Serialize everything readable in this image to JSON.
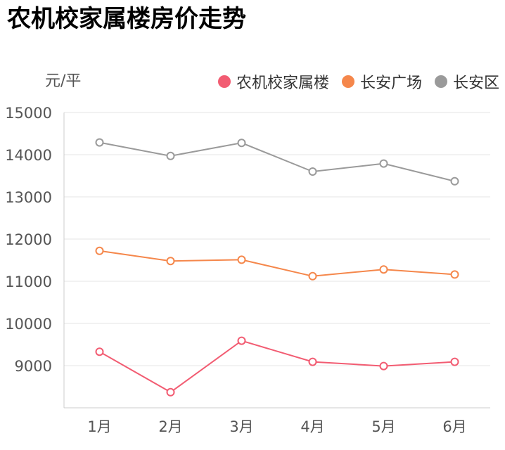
{
  "title": "农机校家属楼房价走势",
  "unit_label": "元/平",
  "colors": {
    "series_0": "#F25C72",
    "series_1": "#F5874B",
    "series_2": "#9A9A9A",
    "grid": "#E6E6E6",
    "axis": "#CCCCCC"
  },
  "chart_data": {
    "type": "line",
    "categories": [
      "1月",
      "2月",
      "3月",
      "4月",
      "5月",
      "6月"
    ],
    "ylim": [
      8000,
      15000
    ],
    "yticks": [
      "9000",
      "10000",
      "11000",
      "12000",
      "13000",
      "14000",
      "15000"
    ],
    "legend_position": "top-right",
    "grid": true,
    "series": [
      {
        "name": "农机校家属楼",
        "values": [
          9330,
          8370,
          9590,
          9090,
          8990,
          9090
        ]
      },
      {
        "name": "长安广场",
        "values": [
          11720,
          11480,
          11510,
          11120,
          11280,
          11160
        ]
      },
      {
        "name": "长安区",
        "values": [
          14290,
          13970,
          14280,
          13600,
          13790,
          13370
        ]
      }
    ]
  }
}
